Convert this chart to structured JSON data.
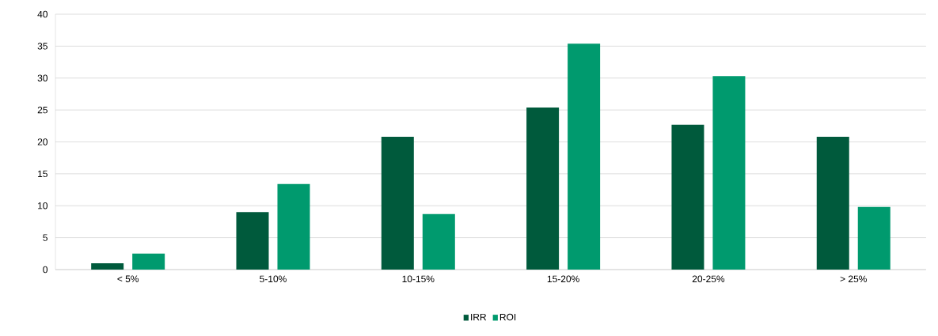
{
  "chart_data": {
    "type": "bar",
    "categories": [
      "< 5%",
      "5-10%",
      "10-15%",
      "15-20%",
      "20-25%",
      "> 25%"
    ],
    "series": [
      {
        "name": "IRR",
        "color": "#005a3c",
        "values": [
          1.0,
          9.0,
          20.8,
          25.4,
          22.7,
          20.8
        ]
      },
      {
        "name": "ROI",
        "color": "#009a6e",
        "values": [
          2.5,
          13.4,
          8.7,
          35.4,
          30.3,
          9.8
        ]
      }
    ],
    "ylim": [
      0,
      40
    ],
    "yticks": [
      0,
      5,
      10,
      15,
      20,
      25,
      30,
      35,
      40
    ],
    "grid": "y",
    "legend": "bottom"
  }
}
